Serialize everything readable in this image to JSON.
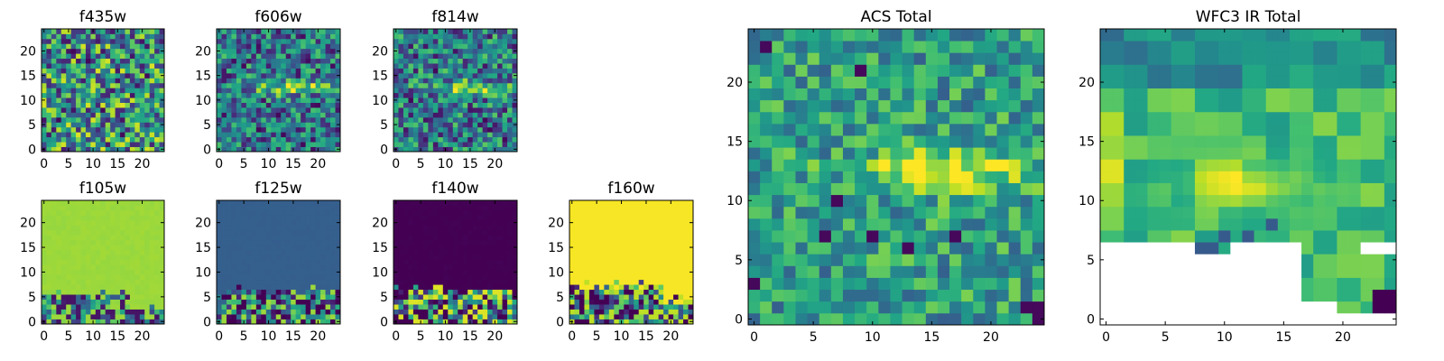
{
  "figure": {
    "colormap": "viridis",
    "missing_color": "#ffffff"
  },
  "chart_data": [
    {
      "type": "heatmap",
      "title": "f435w",
      "x": [
        0,
        24
      ],
      "y": [
        0,
        24
      ],
      "xticks": [
        0,
        5,
        10,
        15,
        20
      ],
      "yticks": [
        0,
        5,
        10,
        15,
        20
      ],
      "pattern": "noise",
      "base": 0.5,
      "spread": 0.45,
      "blob": {
        "cx": 14,
        "cy": 12,
        "rx": 6,
        "ry": 1.2,
        "amp": 0.0
      },
      "deep_blue_cells": [
        [
          3,
          6
        ],
        [
          9,
          18
        ],
        [
          16,
          3
        ],
        [
          21,
          15
        ],
        [
          6,
          20
        ],
        [
          12,
          8
        ]
      ],
      "bottom_band": null
    },
    {
      "type": "heatmap",
      "title": "f606w",
      "x": [
        0,
        24
      ],
      "y": [
        0,
        24
      ],
      "xticks": [
        0,
        5,
        10,
        15,
        20
      ],
      "yticks": [
        0,
        5,
        10,
        15,
        20
      ],
      "pattern": "noise",
      "base": 0.38,
      "spread": 0.35,
      "blob": {
        "cx": 15,
        "cy": 12.5,
        "rx": 6.5,
        "ry": 1.3,
        "amp": 0.55
      },
      "deep_blue_cells": [
        [
          12,
          7
        ],
        [
          13,
          3
        ],
        [
          5,
          17
        ],
        [
          20,
          9
        ],
        [
          8,
          4
        ],
        [
          17,
          1
        ]
      ],
      "bottom_band": null
    },
    {
      "type": "heatmap",
      "title": "f814w",
      "x": [
        0,
        24
      ],
      "y": [
        0,
        24
      ],
      "xticks": [
        0,
        5,
        10,
        15,
        20
      ],
      "yticks": [
        0,
        5,
        10,
        15,
        20
      ],
      "pattern": "noise",
      "base": 0.4,
      "spread": 0.35,
      "blob": {
        "cx": 15,
        "cy": 12.5,
        "rx": 7,
        "ry": 1.3,
        "amp": 0.5
      },
      "deep_blue_cells": [
        [
          18,
          6
        ],
        [
          19,
          4
        ],
        [
          8,
          16
        ],
        [
          3,
          10
        ],
        [
          22,
          2
        ]
      ],
      "bottom_band": null
    },
    {
      "type": "heatmap",
      "title": "f105w",
      "x": [
        0,
        24
      ],
      "y": [
        0,
        24
      ],
      "xticks": [
        0,
        5,
        10,
        15,
        20
      ],
      "yticks": [
        0,
        5,
        10,
        15,
        20
      ],
      "pattern": "uniform",
      "base": 0.85,
      "spread": 0.02,
      "blob": null,
      "deep_blue_cells": [],
      "bottom_band": {
        "rows": 6,
        "low": 0.05,
        "high": 0.85,
        "extend_cols": 17
      }
    },
    {
      "type": "heatmap",
      "title": "f125w",
      "x": [
        0,
        24
      ],
      "y": [
        0,
        24
      ],
      "xticks": [
        0,
        5,
        10,
        15,
        20
      ],
      "yticks": [
        0,
        5,
        10,
        15,
        20
      ],
      "pattern": "uniform",
      "base": 0.3,
      "spread": 0.01,
      "blob": null,
      "deep_blue_cells": [],
      "bottom_band": {
        "rows": 7,
        "low": 0.0,
        "high": 0.85,
        "extend_cols": 24
      }
    },
    {
      "type": "heatmap",
      "title": "f140w",
      "x": [
        0,
        24
      ],
      "y": [
        0,
        24
      ],
      "xticks": [
        0,
        5,
        10,
        15,
        20
      ],
      "yticks": [
        0,
        5,
        10,
        15,
        20
      ],
      "pattern": "uniform",
      "base": 0.0,
      "spread": 0.01,
      "blob": null,
      "deep_blue_cells": [],
      "bottom_band": {
        "rows": 7,
        "low": 0.0,
        "high": 0.95,
        "extend_cols": 24
      }
    },
    {
      "type": "heatmap",
      "title": "f160w",
      "x": [
        0,
        24
      ],
      "y": [
        0,
        24
      ],
      "xticks": [
        0,
        5,
        10,
        15,
        20
      ],
      "yticks": [
        0,
        5,
        10,
        15,
        20
      ],
      "pattern": "uniform",
      "base": 0.99,
      "spread": 0.0,
      "blob": null,
      "deep_blue_cells": [],
      "bottom_band": {
        "rows": 8,
        "low": 0.0,
        "high": 0.9,
        "extend_cols": 18
      }
    },
    {
      "type": "heatmap",
      "title": "ACS Total",
      "x": [
        0,
        24
      ],
      "y": [
        0,
        24
      ],
      "xticks": [
        0,
        5,
        10,
        15,
        20
      ],
      "yticks": [
        0,
        5,
        10,
        15,
        20
      ],
      "pattern": "noise",
      "base": 0.55,
      "spread": 0.25,
      "blob": {
        "cx": 16,
        "cy": 12.5,
        "rx": 7,
        "ry": 1.6,
        "amp": 0.45
      },
      "deep_blue_cells": [
        [
          9,
          21
        ],
        [
          6,
          7
        ],
        [
          10,
          7
        ],
        [
          17,
          7
        ],
        [
          7,
          10
        ],
        [
          23,
          1
        ],
        [
          24,
          1
        ],
        [
          24,
          0
        ],
        [
          1,
          23
        ],
        [
          0,
          3
        ],
        [
          13,
          6
        ]
      ],
      "bottom_band": null
    },
    {
      "type": "heatmap",
      "title": "WFC3 IR Total",
      "x": [
        0,
        24
      ],
      "y": [
        0,
        24
      ],
      "xticks": [
        0,
        5,
        10,
        15,
        20
      ],
      "yticks": [
        0,
        5,
        10,
        15,
        20
      ],
      "pattern": "coarse",
      "base": 0.68,
      "spread": 0.14,
      "blob": {
        "cx": 12,
        "cy": 11.5,
        "rx": 5,
        "ry": 1.8,
        "amp": 0.3
      },
      "deep_blue_cells": [
        [
          23,
          1
        ],
        [
          23,
          2
        ],
        [
          24,
          1
        ],
        [
          24,
          2
        ],
        [
          8,
          6
        ],
        [
          9,
          6
        ],
        [
          10,
          7
        ],
        [
          12,
          7
        ],
        [
          14,
          8
        ]
      ],
      "masked_region": "lower",
      "bottom_band": null
    }
  ]
}
